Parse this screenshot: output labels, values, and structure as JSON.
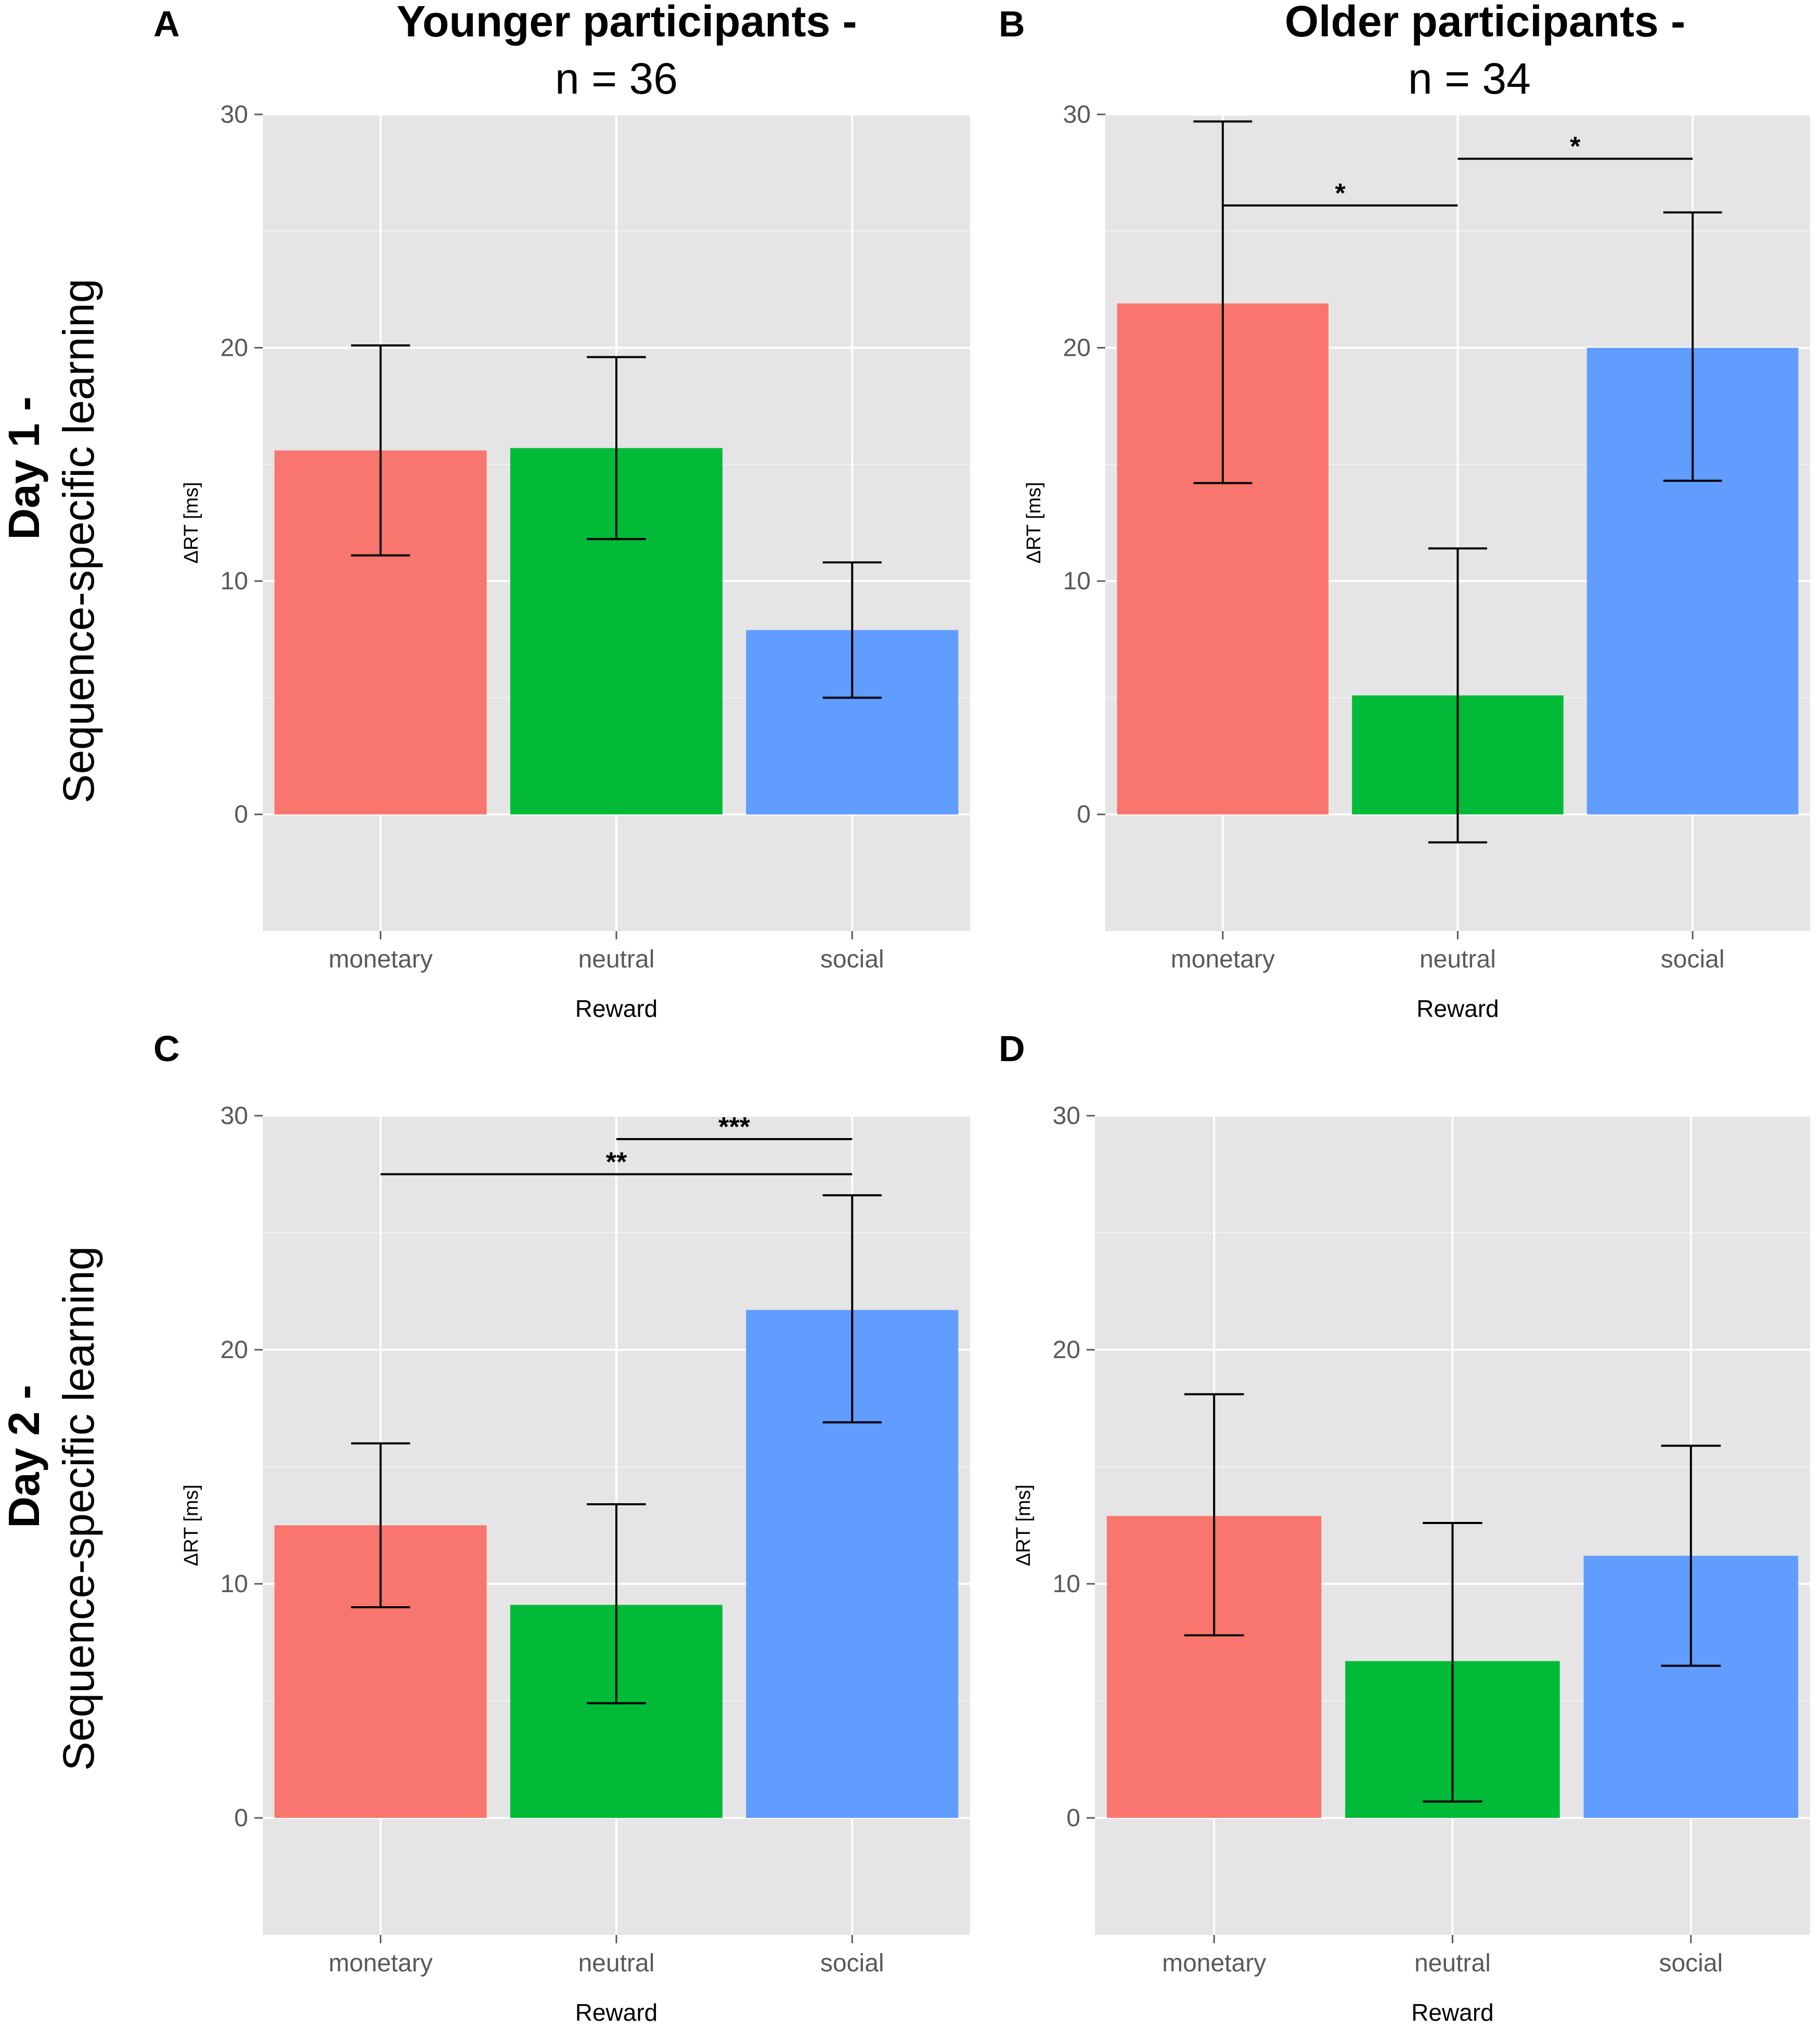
{
  "columns": [
    {
      "title": "Younger participants -",
      "subtitle": "n = 36"
    },
    {
      "title": "Older participants -",
      "subtitle": "n = 34"
    }
  ],
  "rows": [
    {
      "title": "Day 1 -",
      "subtitle": "Sequence-specific learning"
    },
    {
      "title": "Day 2 -",
      "subtitle": "Sequence-specific learning"
    }
  ],
  "colors": {
    "monetary": "#F8766D",
    "neutral": "#00BA38",
    "social": "#619CFF",
    "panel_bg": "#E5E5E5",
    "grid": "#FFFFFF",
    "tick": "#595959"
  },
  "chart_data": [
    {
      "panel": "A",
      "type": "bar",
      "categories": [
        "monetary",
        "neutral",
        "social"
      ],
      "values": [
        15.6,
        15.7,
        7.9
      ],
      "error_low": [
        11.1,
        11.8,
        5.0
      ],
      "error_high": [
        20.1,
        19.6,
        10.8
      ],
      "xlabel": "Reward",
      "ylabel": "ΔRT [ms]",
      "ylim": [
        -5,
        30
      ],
      "yticks": [
        0,
        10,
        20,
        30
      ],
      "significance": []
    },
    {
      "panel": "B",
      "type": "bar",
      "categories": [
        "monetary",
        "neutral",
        "social"
      ],
      "values": [
        21.9,
        5.1,
        20.0
      ],
      "error_low": [
        14.2,
        -1.2,
        14.3
      ],
      "error_high": [
        29.7,
        11.4,
        25.8
      ],
      "xlabel": "Reward",
      "ylabel": "ΔRT [ms]",
      "ylim": [
        -5,
        30
      ],
      "yticks": [
        0,
        10,
        20,
        30
      ],
      "significance": [
        {
          "from": "monetary",
          "to": "neutral",
          "y": 26.1,
          "label": "*"
        },
        {
          "from": "neutral",
          "to": "social",
          "y": 28.1,
          "label": "*"
        }
      ]
    },
    {
      "panel": "C",
      "type": "bar",
      "categories": [
        "monetary",
        "neutral",
        "social"
      ],
      "values": [
        12.5,
        9.1,
        21.7
      ],
      "error_low": [
        9.0,
        4.9,
        16.9
      ],
      "error_high": [
        16.0,
        13.4,
        26.6
      ],
      "xlabel": "Reward",
      "ylabel": "ΔRT [ms]",
      "ylim": [
        -5,
        30
      ],
      "yticks": [
        0,
        10,
        20,
        30
      ],
      "significance": [
        {
          "from": "neutral",
          "to": "social",
          "y": 29.0,
          "label": "***"
        },
        {
          "from": "monetary",
          "to": "social",
          "y": 27.5,
          "label": "**"
        }
      ]
    },
    {
      "panel": "D",
      "type": "bar",
      "categories": [
        "monetary",
        "neutral",
        "social"
      ],
      "values": [
        12.9,
        6.7,
        11.2
      ],
      "error_low": [
        7.8,
        0.7,
        6.5
      ],
      "error_high": [
        18.1,
        12.6,
        15.9
      ],
      "xlabel": "Reward",
      "ylabel": "ΔRT [ms]",
      "ylim": [
        -5,
        30
      ],
      "yticks": [
        0,
        10,
        20,
        30
      ],
      "significance": []
    }
  ]
}
